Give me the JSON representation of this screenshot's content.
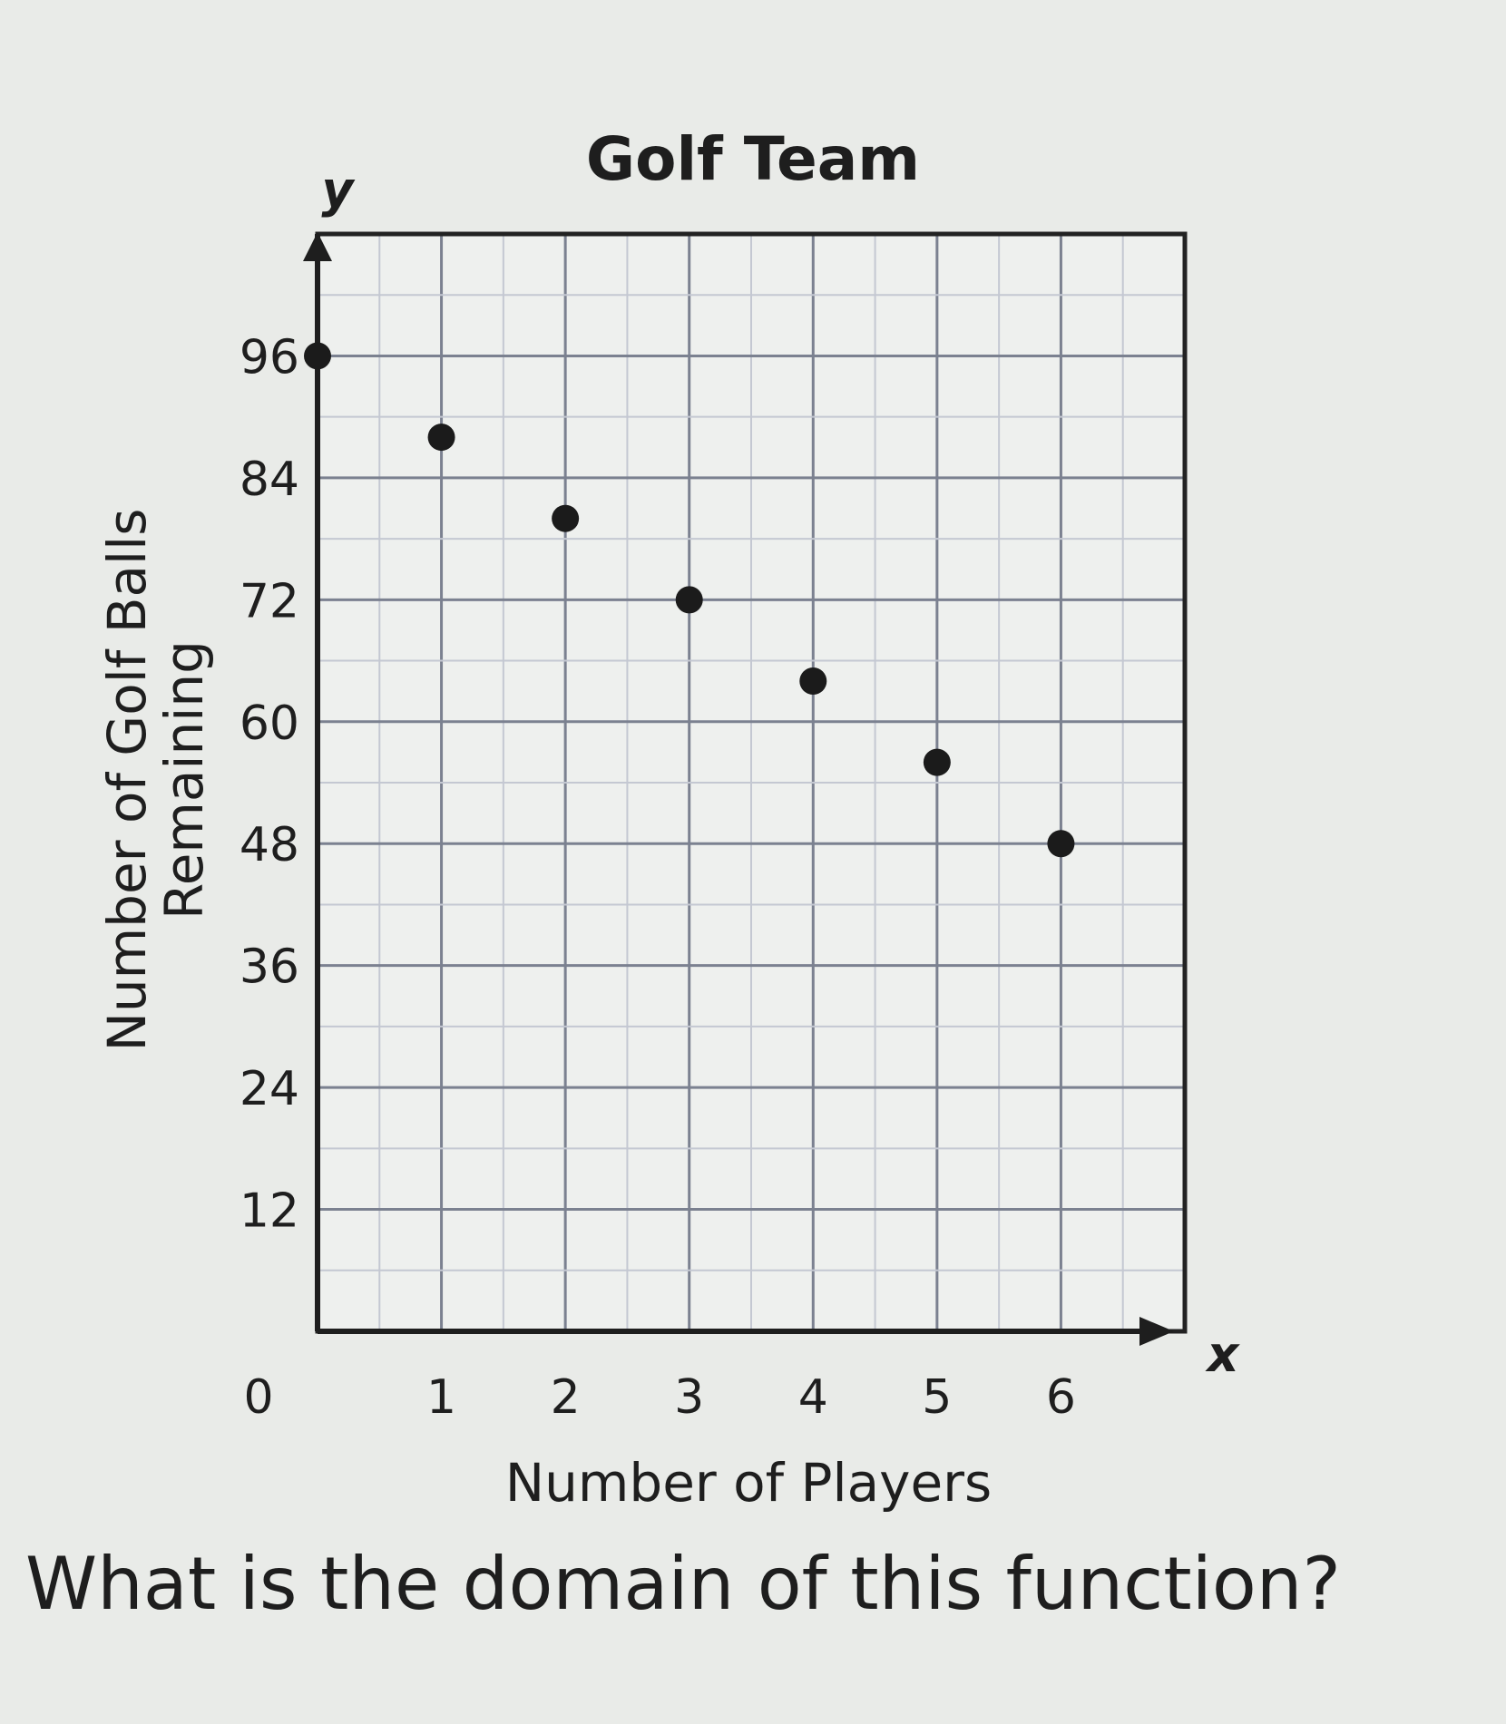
{
  "chart_data": {
    "type": "scatter",
    "title": "Golf Team",
    "xlabel": "Number of Players",
    "ylabel_lines": [
      "Number of Golf Balls",
      "Remaining"
    ],
    "x_axis_var": "x",
    "y_axis_var": "y",
    "xlim": [
      0,
      7
    ],
    "ylim": [
      0,
      108
    ],
    "x_ticks": [
      "0",
      "1",
      "2",
      "3",
      "4",
      "5",
      "6"
    ],
    "y_ticks": [
      "12",
      "24",
      "36",
      "48",
      "60",
      "72",
      "84",
      "96"
    ],
    "grid": true,
    "points": [
      {
        "x": 0,
        "y": 96
      },
      {
        "x": 1,
        "y": 88
      },
      {
        "x": 2,
        "y": 80
      },
      {
        "x": 3,
        "y": 72
      },
      {
        "x": 4,
        "y": 64
      },
      {
        "x": 5,
        "y": 56
      },
      {
        "x": 6,
        "y": 48
      }
    ]
  },
  "question": "What is the domain of this function?"
}
